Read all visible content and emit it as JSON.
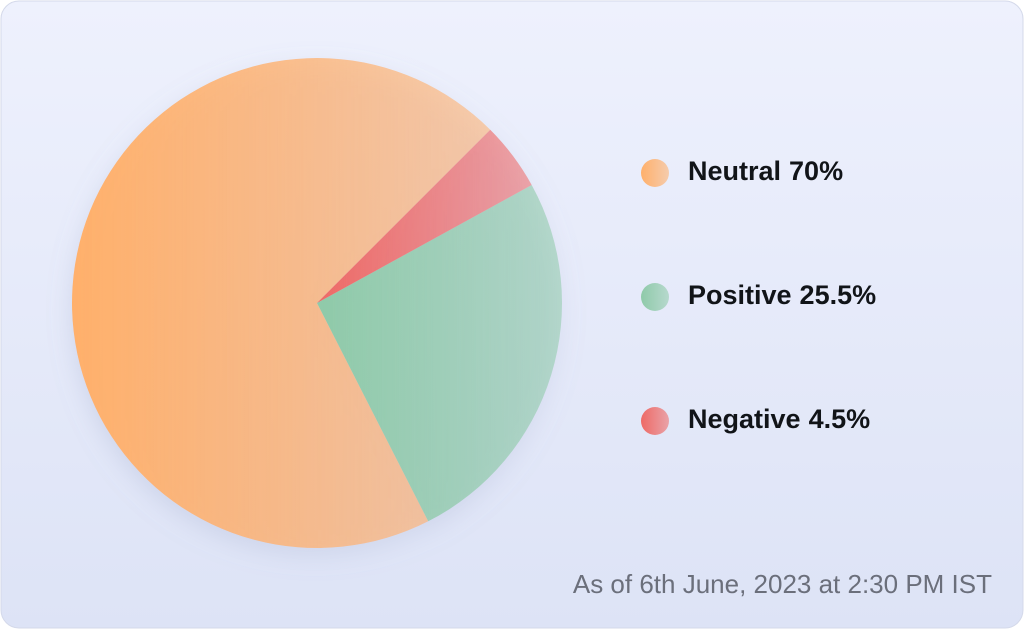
{
  "chart_data": {
    "type": "pie",
    "categories": [
      "Neutral",
      "Positive",
      "Negative"
    ],
    "values": [
      70,
      25.5,
      4.5
    ],
    "value_labels": [
      "70%",
      "25.5%",
      "4.5%"
    ],
    "colors": [
      "#ffb06b",
      "#8fcaa9",
      "#ee6a66"
    ],
    "legend": "right",
    "footnote": "As of 6th June, 2023 at 2:30 PM IST"
  }
}
